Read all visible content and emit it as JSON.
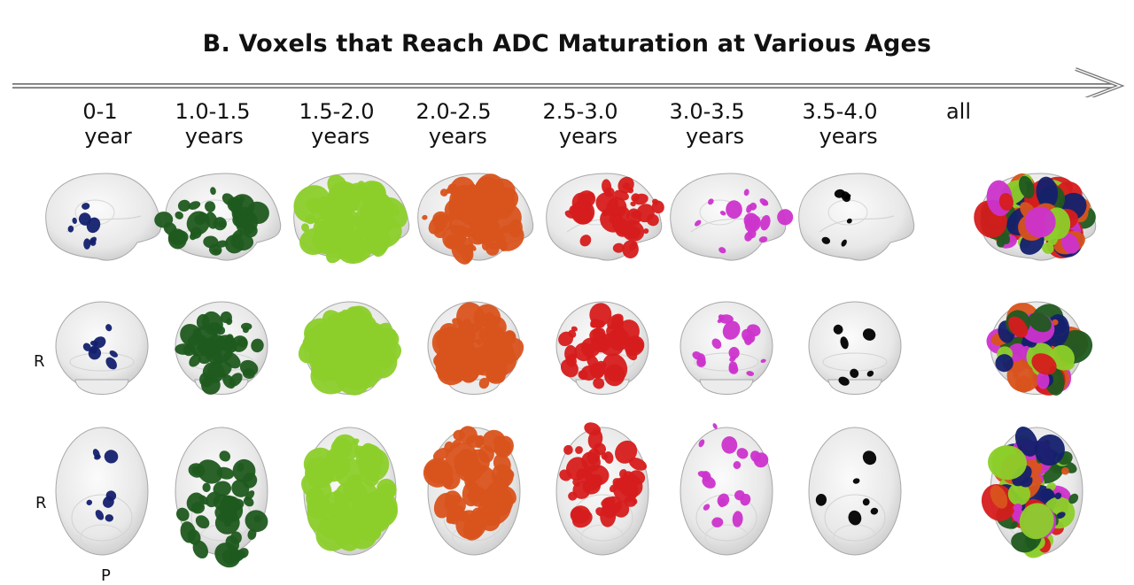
{
  "title": "B. Voxels that Reach ADC Maturation at Various Ages",
  "columns": [
    {
      "line1": "0-1",
      "line2": "year",
      "color": "#14206e",
      "offset2": 30
    },
    {
      "line1": "1.0-1.5",
      "line2": "years",
      "color": "#1f5a1f",
      "offset2": 6
    },
    {
      "line1": "1.5-2.0",
      "line2": "years",
      "color": "#8ccf2a",
      "offset2": 14
    },
    {
      "line1": "2.0-2.5",
      "line2": "years",
      "color": "#d9531c",
      "offset2": 16
    },
    {
      "line1": "2.5-3.0",
      "line2": "years",
      "color": "#d61c1c",
      "offset2": 30
    },
    {
      "line1": "3.0-3.5",
      "line2": "years",
      "color": "#cc33cc",
      "offset2": 30
    },
    {
      "line1": "3.5-4.0",
      "line2": "years",
      "color": "#000000",
      "offset2": 32
    },
    {
      "line1": "all",
      "line2": "",
      "color": "mixed",
      "offset2": 0
    }
  ],
  "row_labels": {
    "row2": "R",
    "row3": "R",
    "bottom": "P"
  },
  "views": [
    "sagittal",
    "coronal",
    "axial"
  ]
}
